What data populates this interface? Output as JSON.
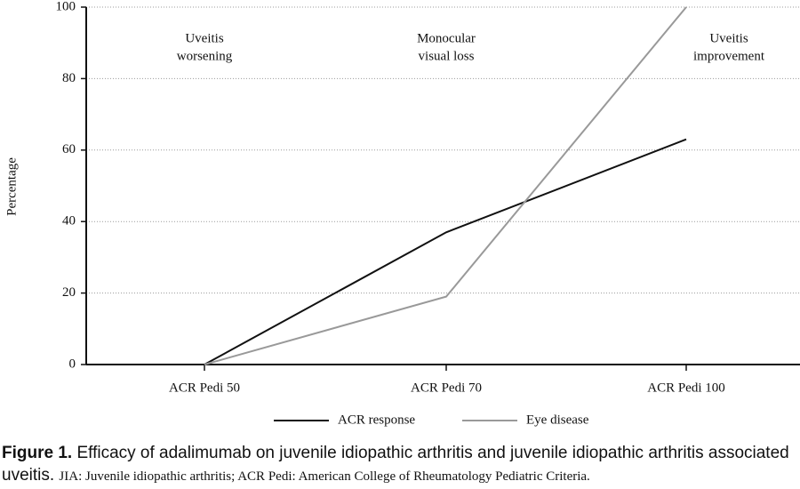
{
  "chart_data": {
    "type": "line",
    "y_label": "Percentage",
    "categories": [
      "ACR Pedi 50",
      "ACR Pedi 70",
      "ACR Pedi 100"
    ],
    "series": [
      {
        "name": "ACR response",
        "color": "#111111",
        "values": [
          0,
          37,
          63
        ]
      },
      {
        "name": "Eye disease",
        "color": "#999999",
        "values": [
          0,
          19,
          100
        ]
      }
    ],
    "ylim": [
      0,
      100
    ],
    "yticks": [
      0,
      20,
      40,
      60,
      80,
      100
    ],
    "grid": true,
    "annotations": [
      [
        "Uveitis",
        "worsening"
      ],
      [
        "Monocular",
        "visual loss"
      ],
      [
        "Uveitis",
        "improvement"
      ]
    ],
    "legend": "bottom"
  },
  "caption": {
    "label": "Figure 1.",
    "title": "Efficacy of adalimumab on juvenile idiopathic arthritis and juvenile idiopathic arthritis associated uveitis.",
    "note": "JIA: Juvenile idiopathic arthritis; ACR Pedi: American College of Rheumatology Pediatric Criteria."
  }
}
